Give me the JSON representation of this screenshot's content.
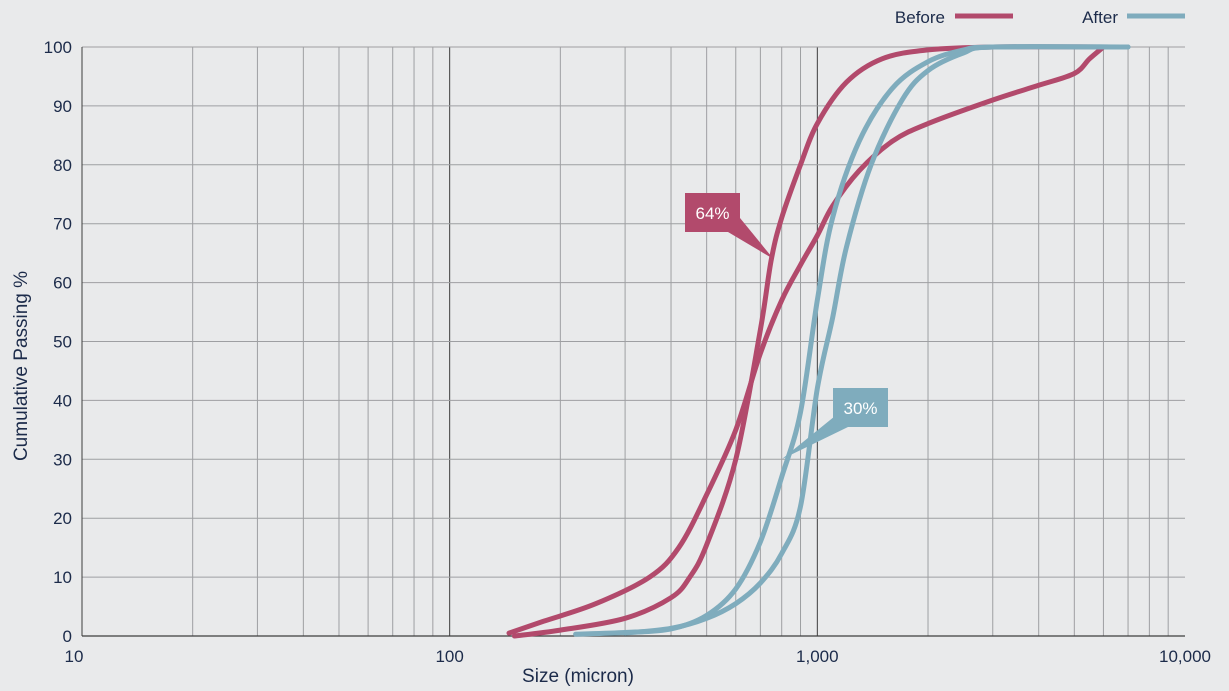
{
  "chart_data": {
    "type": "line",
    "title": "",
    "xlabel": "Size (micron)",
    "ylabel": "Cumulative Passing %",
    "xscale": "log",
    "xlim": [
      10,
      10000
    ],
    "ylim": [
      0,
      100
    ],
    "grid": true,
    "legend_position": "top-right",
    "x_ticks": [
      {
        "value": 10,
        "label": "10"
      },
      {
        "value": 100,
        "label": "100"
      },
      {
        "value": 1000,
        "label": "1,000"
      },
      {
        "value": 10000,
        "label": "10,000"
      }
    ],
    "y_ticks": [
      {
        "value": 0,
        "label": "0"
      },
      {
        "value": 10,
        "label": "10"
      },
      {
        "value": 20,
        "label": "20"
      },
      {
        "value": 30,
        "label": "30"
      },
      {
        "value": 40,
        "label": "40"
      },
      {
        "value": 50,
        "label": "50"
      },
      {
        "value": 60,
        "label": "60"
      },
      {
        "value": 70,
        "label": "70"
      },
      {
        "value": 80,
        "label": "80"
      },
      {
        "value": 90,
        "label": "90"
      },
      {
        "value": 100,
        "label": "100"
      }
    ],
    "series": [
      {
        "name": "Before",
        "color": "#b24a6c",
        "curves": [
          {
            "x": [
              145,
              180,
              250,
              350,
              420,
              500,
              600,
              700,
              800,
              900,
              1000,
              1100,
              1300,
              1600,
              2000,
              3000,
              4000,
              5000,
              5500,
              6000
            ],
            "y": [
              0.5,
              2.5,
              5.5,
              10,
              15,
              24,
              35,
              48,
              57,
              63,
              68,
              73,
              79,
              84,
              87,
              91,
              93.5,
              95.5,
              98,
              100
            ]
          },
          {
            "x": [
              150,
              200,
              300,
              400,
              450,
              500,
              600,
              700,
              750,
              800,
              900,
              1000,
              1200,
              1500,
              2000,
              3000,
              6000
            ],
            "y": [
              0,
              1,
              3,
              6.5,
              10,
              15.5,
              30,
              52,
              64,
              71,
              80,
              87,
              94,
              98,
              99.5,
              100,
              100
            ]
          }
        ]
      },
      {
        "name": "After",
        "color": "#7facbd",
        "curves": [
          {
            "x": [
              220,
              300,
              400,
              500,
              600,
              700,
              800,
              900,
              1000,
              1100,
              1300,
              1600,
              2000,
              2500,
              3000,
              7000
            ],
            "y": [
              0.3,
              0.6,
              1.2,
              3.5,
              8,
              16,
              27,
              38,
              57,
              71,
              84,
              93,
              97.5,
              99.5,
              100,
              100
            ]
          },
          {
            "x": [
              300,
              400,
              500,
              600,
              700,
              800,
              900,
              1000,
              1100,
              1200,
              1400,
              1700,
              2000,
              2500,
              3000,
              7000
            ],
            "y": [
              0.5,
              1.3,
              3,
              5.5,
              9,
              14,
              22,
              42,
              54,
              66,
              80,
              91,
              96,
              99,
              100,
              100
            ]
          }
        ]
      }
    ],
    "annotations": [
      {
        "text": "64%",
        "series": "Before",
        "x": 760,
        "y": 64
      },
      {
        "text": "30%",
        "series": "After",
        "x": 800,
        "y": 30
      }
    ]
  }
}
